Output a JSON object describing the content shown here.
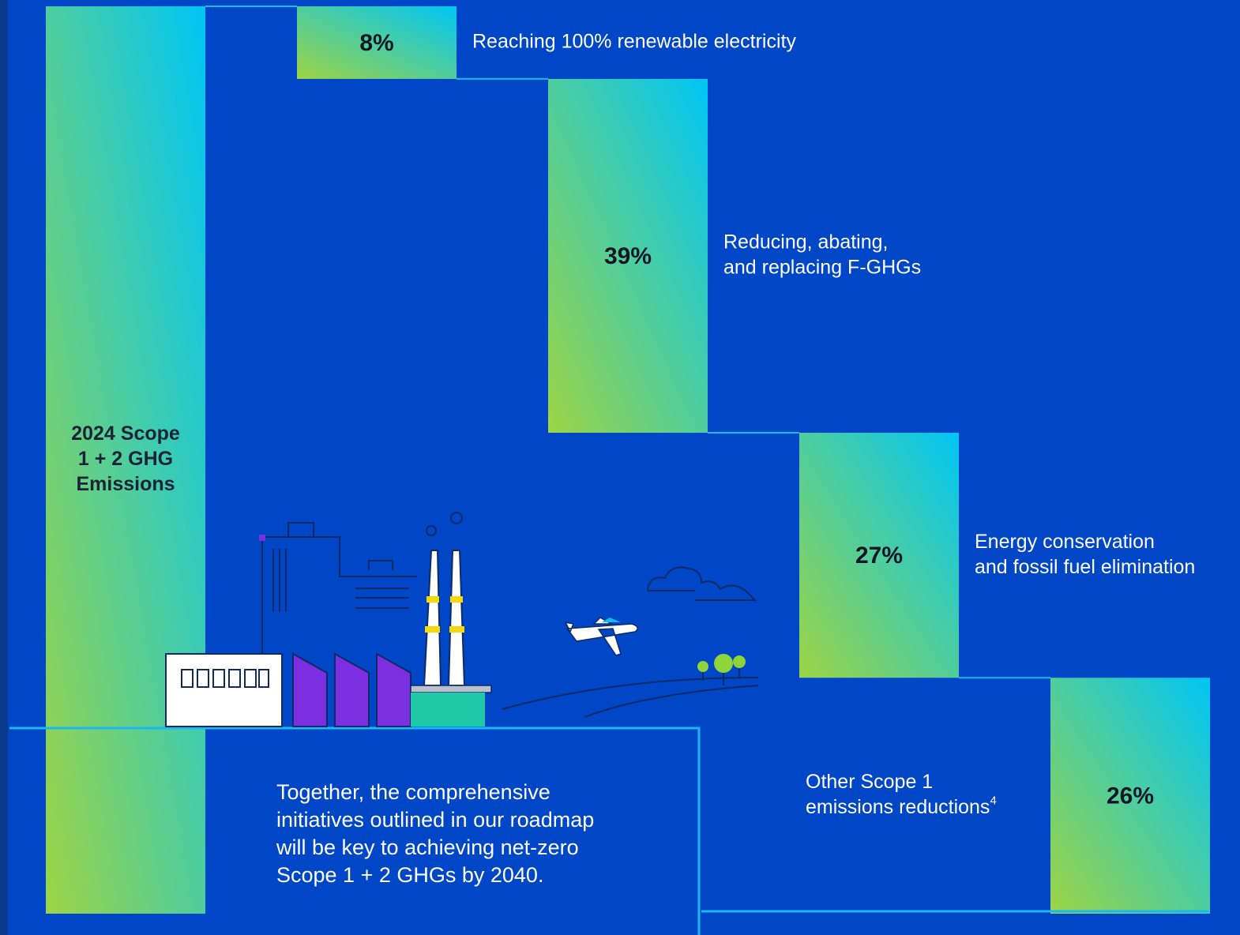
{
  "chart_data": {
    "type": "waterfall",
    "total": {
      "label": [
        "2024 Scope",
        "1 + 2 GHG",
        "Emissions"
      ],
      "value": 100
    },
    "categories": [
      [
        "Reaching 100% renewable electricity"
      ],
      [
        "Reducing, abating,",
        "and replacing F-GHGs"
      ],
      [
        "Energy conservation",
        "and fossil fuel elimination"
      ],
      [
        "Other Scope 1",
        "emissions reductions"
      ]
    ],
    "footnotes": [
      null,
      null,
      null,
      "4"
    ],
    "values": [
      8,
      39,
      27,
      26
    ],
    "value_labels": [
      "8%",
      "39%",
      "27%",
      "26%"
    ],
    "ylim": [
      0,
      100
    ],
    "color_top": "#00c6f6",
    "color_bottom": "#9dd445",
    "note": [
      "Together, the comprehensive",
      "initiatives outlined in our roadmap",
      "will be key to achieving net-zero",
      "Scope 1 + 2 GHGs by 2040."
    ]
  }
}
